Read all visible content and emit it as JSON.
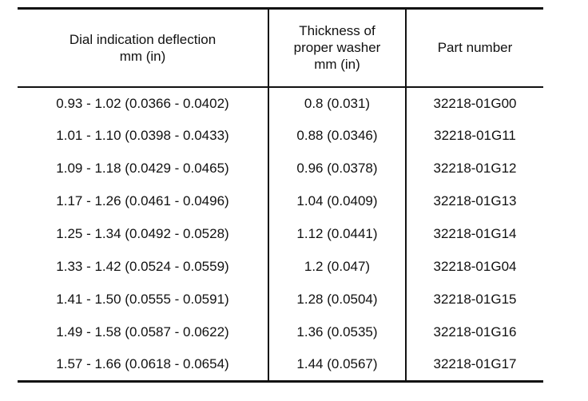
{
  "table": {
    "headers": [
      {
        "lines": [
          "Dial indication deflection",
          "mm (in)"
        ]
      },
      {
        "lines": [
          "Thickness of",
          "proper washer",
          "mm (in)"
        ]
      },
      {
        "lines": [
          "Part number"
        ]
      }
    ],
    "rows": [
      [
        "0.93 - 1.02 (0.0366 - 0.0402)",
        "0.8 (0.031)",
        "32218-01G00"
      ],
      [
        "1.01 - 1.10 (0.0398 - 0.0433)",
        "0.88 (0.0346)",
        "32218-01G11"
      ],
      [
        "1.09 - 1.18 (0.0429 - 0.0465)",
        "0.96 (0.0378)",
        "32218-01G12"
      ],
      [
        "1.17 - 1.26 (0.0461 - 0.0496)",
        "1.04 (0.0409)",
        "32218-01G13"
      ],
      [
        "1.25 - 1.34 (0.0492 - 0.0528)",
        "1.12 (0.0441)",
        "32218-01G14"
      ],
      [
        "1.33 - 1.42 (0.0524 - 0.0559)",
        "1.2 (0.047)",
        "32218-01G04"
      ],
      [
        "1.41 - 1.50 (0.0555 - 0.0591)",
        "1.28 (0.0504)",
        "32218-01G15"
      ],
      [
        "1.49 - 1.58 (0.0587 - 0.0622)",
        "1.36 (0.0535)",
        "32218-01G16"
      ],
      [
        "1.57 - 1.66 (0.0618 - 0.0654)",
        "1.44 (0.0567)",
        "32218-01G17"
      ]
    ]
  }
}
